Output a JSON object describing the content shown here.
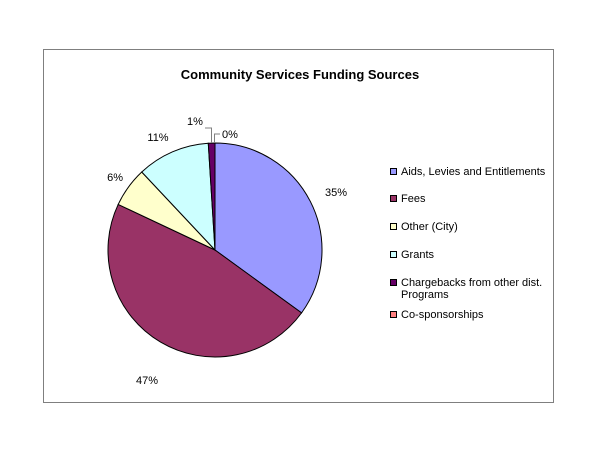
{
  "chart_data": {
    "type": "pie",
    "title": "Community Services Funding Sources",
    "categories": [
      "Aids, Levies and Entitlements",
      "Fees",
      "Other (City)",
      "Grants",
      "Chargebacks from other dist. Programs",
      "Co-sponsorships"
    ],
    "values": [
      35,
      47,
      6,
      11,
      1,
      0
    ],
    "labels": [
      "35%",
      "47%",
      "6%",
      "11%",
      "1%",
      "0%"
    ],
    "colors": [
      "#9999ff",
      "#993366",
      "#ffffcc",
      "#ccffff",
      "#660066",
      "#ff8080"
    ],
    "legend_position": "right"
  }
}
